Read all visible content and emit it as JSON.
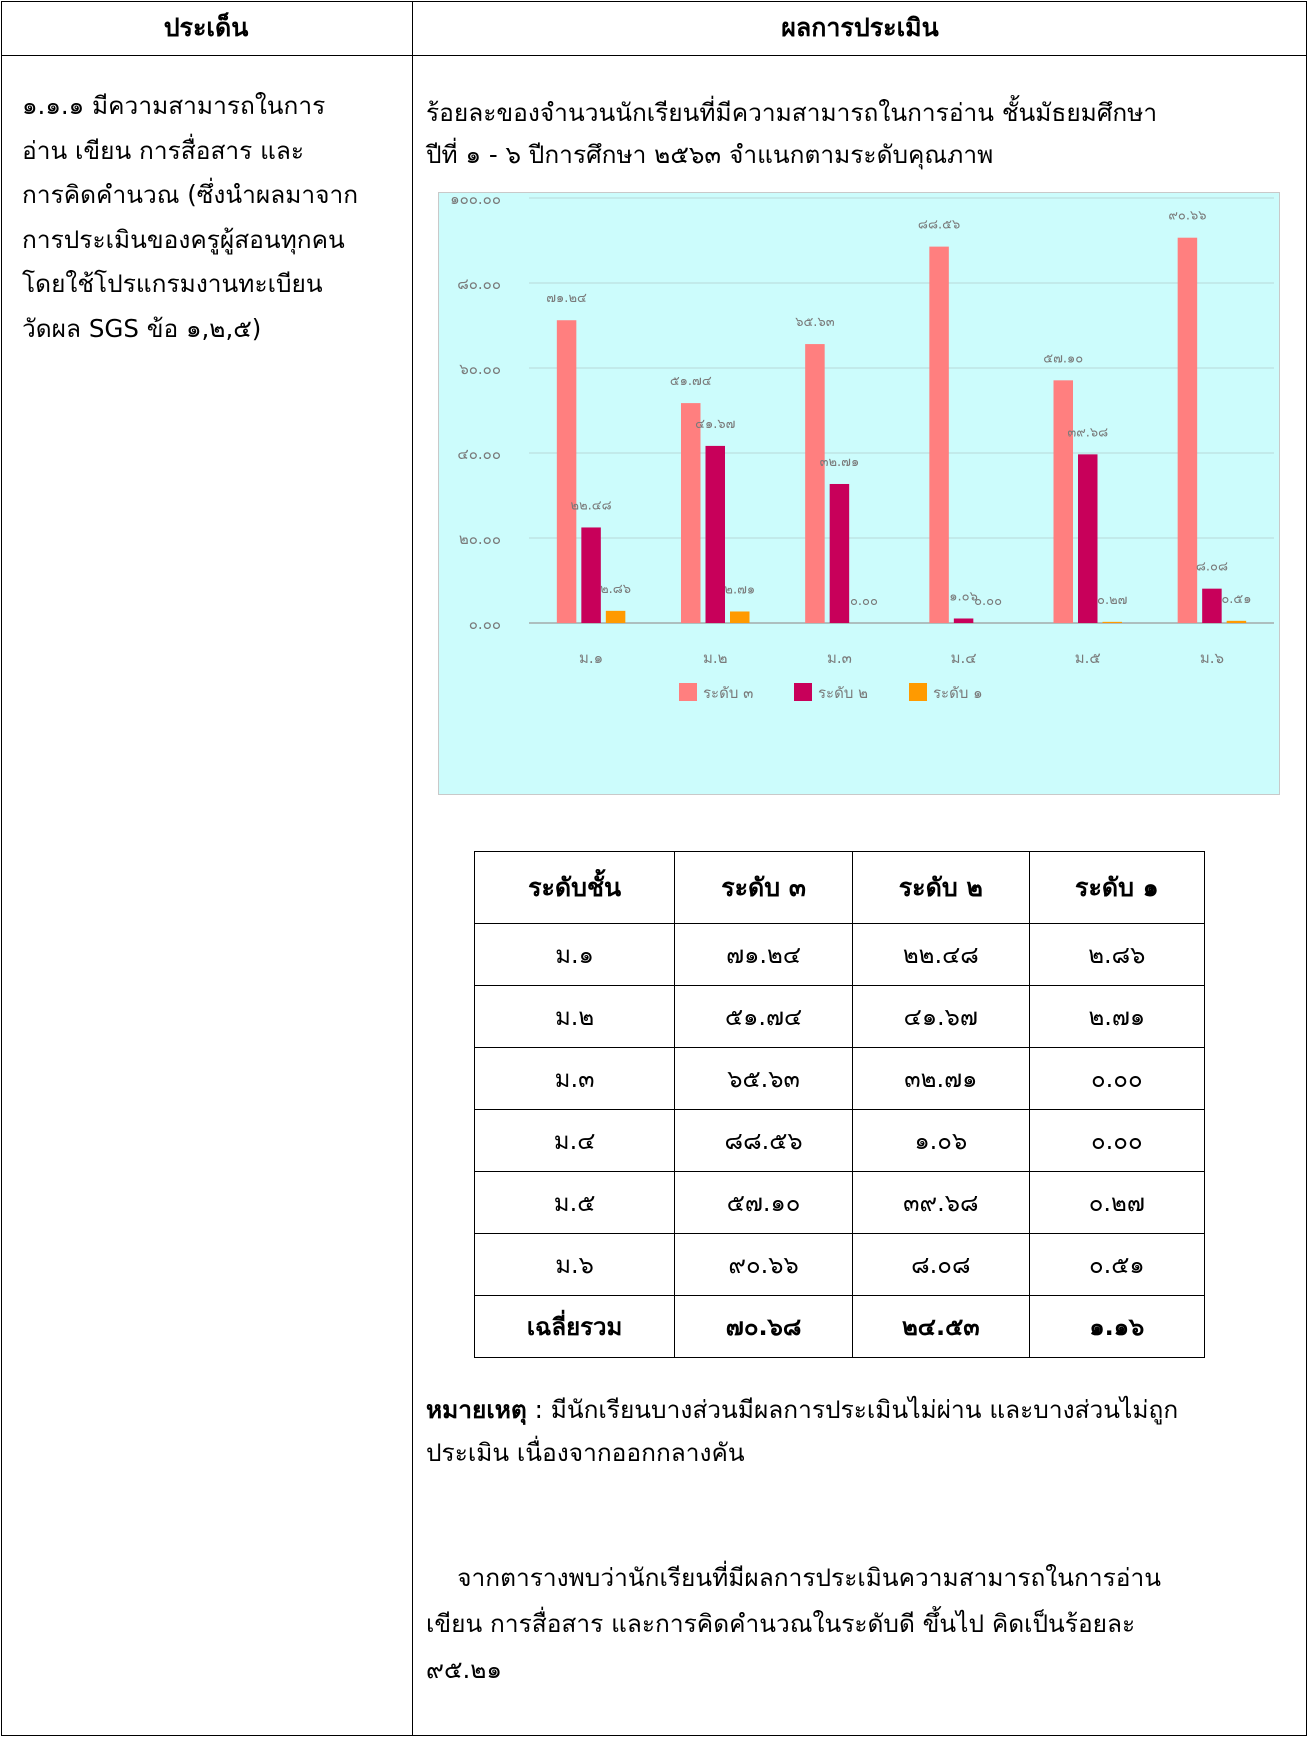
{
  "header": {
    "col1": "ประเด็น",
    "col2": "ผลการประเมิน"
  },
  "left_text": [
    "๑.๑.๑  มีความสามารถในการ",
    "อ่าน  เขียน  การสื่อสาร  และ",
    "การคิดคำนวณ (ซึ่งนำผลมาจาก",
    "การประเมินของครูผู้สอนทุกคน",
    "โดยใช้โปรแกรมงานทะเบียน",
    "วัดผล SGS ข้อ ๑,๒,๕)"
  ],
  "intro": [
    "ร้อยละของจำนวนนักเรียนที่มีความสามารถในการอ่าน ชั้นมัธยมศึกษา",
    "ปีที่ ๑ - ๖ ปีการศึกษา ๒๕๖๓ จำแนกตามระดับคุณภาพ"
  ],
  "chart_data": {
    "type": "bar",
    "categories": [
      "ม.๑",
      "ม.๒",
      "ม.๓",
      "ม.๔",
      "ม.๕",
      "ม.๖"
    ],
    "series": [
      {
        "name": "ระดับ ๓",
        "color": "#ff7f7f",
        "values": [
          71.24,
          51.74,
          65.63,
          88.56,
          57.1,
          90.66
        ],
        "labels": [
          "๗๑.๒๔",
          "๕๑.๗๔",
          "๖๕.๖๓",
          "๘๘.๕๖",
          "๕๗.๑๐",
          "๙๐.๖๖"
        ]
      },
      {
        "name": "ระดับ ๒",
        "color": "#c8005a",
        "values": [
          22.48,
          41.67,
          32.71,
          1.06,
          39.68,
          8.08
        ],
        "labels": [
          "๒๒.๔๘",
          "๔๑.๖๗",
          "๓๒.๗๑",
          "๑.๐๖",
          "๓๙.๖๘",
          "๘.๐๘"
        ]
      },
      {
        "name": "ระดับ ๑",
        "color": "#ff9a00",
        "values": [
          2.86,
          2.71,
          0.0,
          0.0,
          0.27,
          0.51
        ],
        "labels": [
          "๒.๘๖",
          "๒.๗๑",
          "๐.๐๐",
          "๐.๐๐",
          "๐.๒๗",
          "๐.๕๑"
        ]
      }
    ],
    "y_ticks": [
      {
        "value": 0,
        "label": "๐.๐๐"
      },
      {
        "value": 20,
        "label": "๒๐.๐๐"
      },
      {
        "value": 40,
        "label": "๔๐.๐๐"
      },
      {
        "value": 60,
        "label": "๖๐.๐๐"
      },
      {
        "value": 80,
        "label": "๘๐.๐๐"
      },
      {
        "value": 100,
        "label": "๑๐๐.๐๐"
      }
    ],
    "ylim": [
      0,
      100
    ],
    "grid": true,
    "legend": "bottom",
    "background": "#ccfcfc"
  },
  "table": {
    "headers": [
      "ระดับชั้น",
      "ระดับ ๓",
      "ระดับ ๒",
      "ระดับ ๑"
    ],
    "rows": [
      [
        "ม.๑",
        "๗๑.๒๔",
        "๒๒.๔๘",
        "๒.๘๖"
      ],
      [
        "ม.๒",
        "๕๑.๗๔",
        "๔๑.๖๗",
        "๒.๗๑"
      ],
      [
        "ม.๓",
        "๖๕.๖๓",
        "๓๒.๗๑",
        "๐.๐๐"
      ],
      [
        "ม.๔",
        "๘๘.๕๖",
        "๑.๐๖",
        "๐.๐๐"
      ],
      [
        "ม.๕",
        "๕๗.๑๐",
        "๓๙.๖๘",
        "๐.๒๗"
      ],
      [
        "ม.๖",
        "๙๐.๖๖",
        "๘.๐๘",
        "๐.๕๑"
      ]
    ],
    "total": [
      "เฉลี่ยรวม",
      "๗๐.๖๘",
      "๒๔.๕๓",
      "๑.๑๖"
    ]
  },
  "note": {
    "label": "หมายเหตุ",
    "line1": " : มีนักเรียนบางส่วนมีผลการประเมินไม่ผ่าน  และบางส่วนไม่ถูก",
    "line2": "ประเมิน  เนื่องจากออกกลางคัน"
  },
  "conclusion": [
    "    จากตารางพบว่านักเรียนที่มีผลการประเมินความสามารถในการอ่าน",
    "เขียน  การสื่อสาร  และการคิดคำนวณในระดับดี ขึ้นไป คิดเป็นร้อยละ",
    "๙๕.๒๑"
  ]
}
